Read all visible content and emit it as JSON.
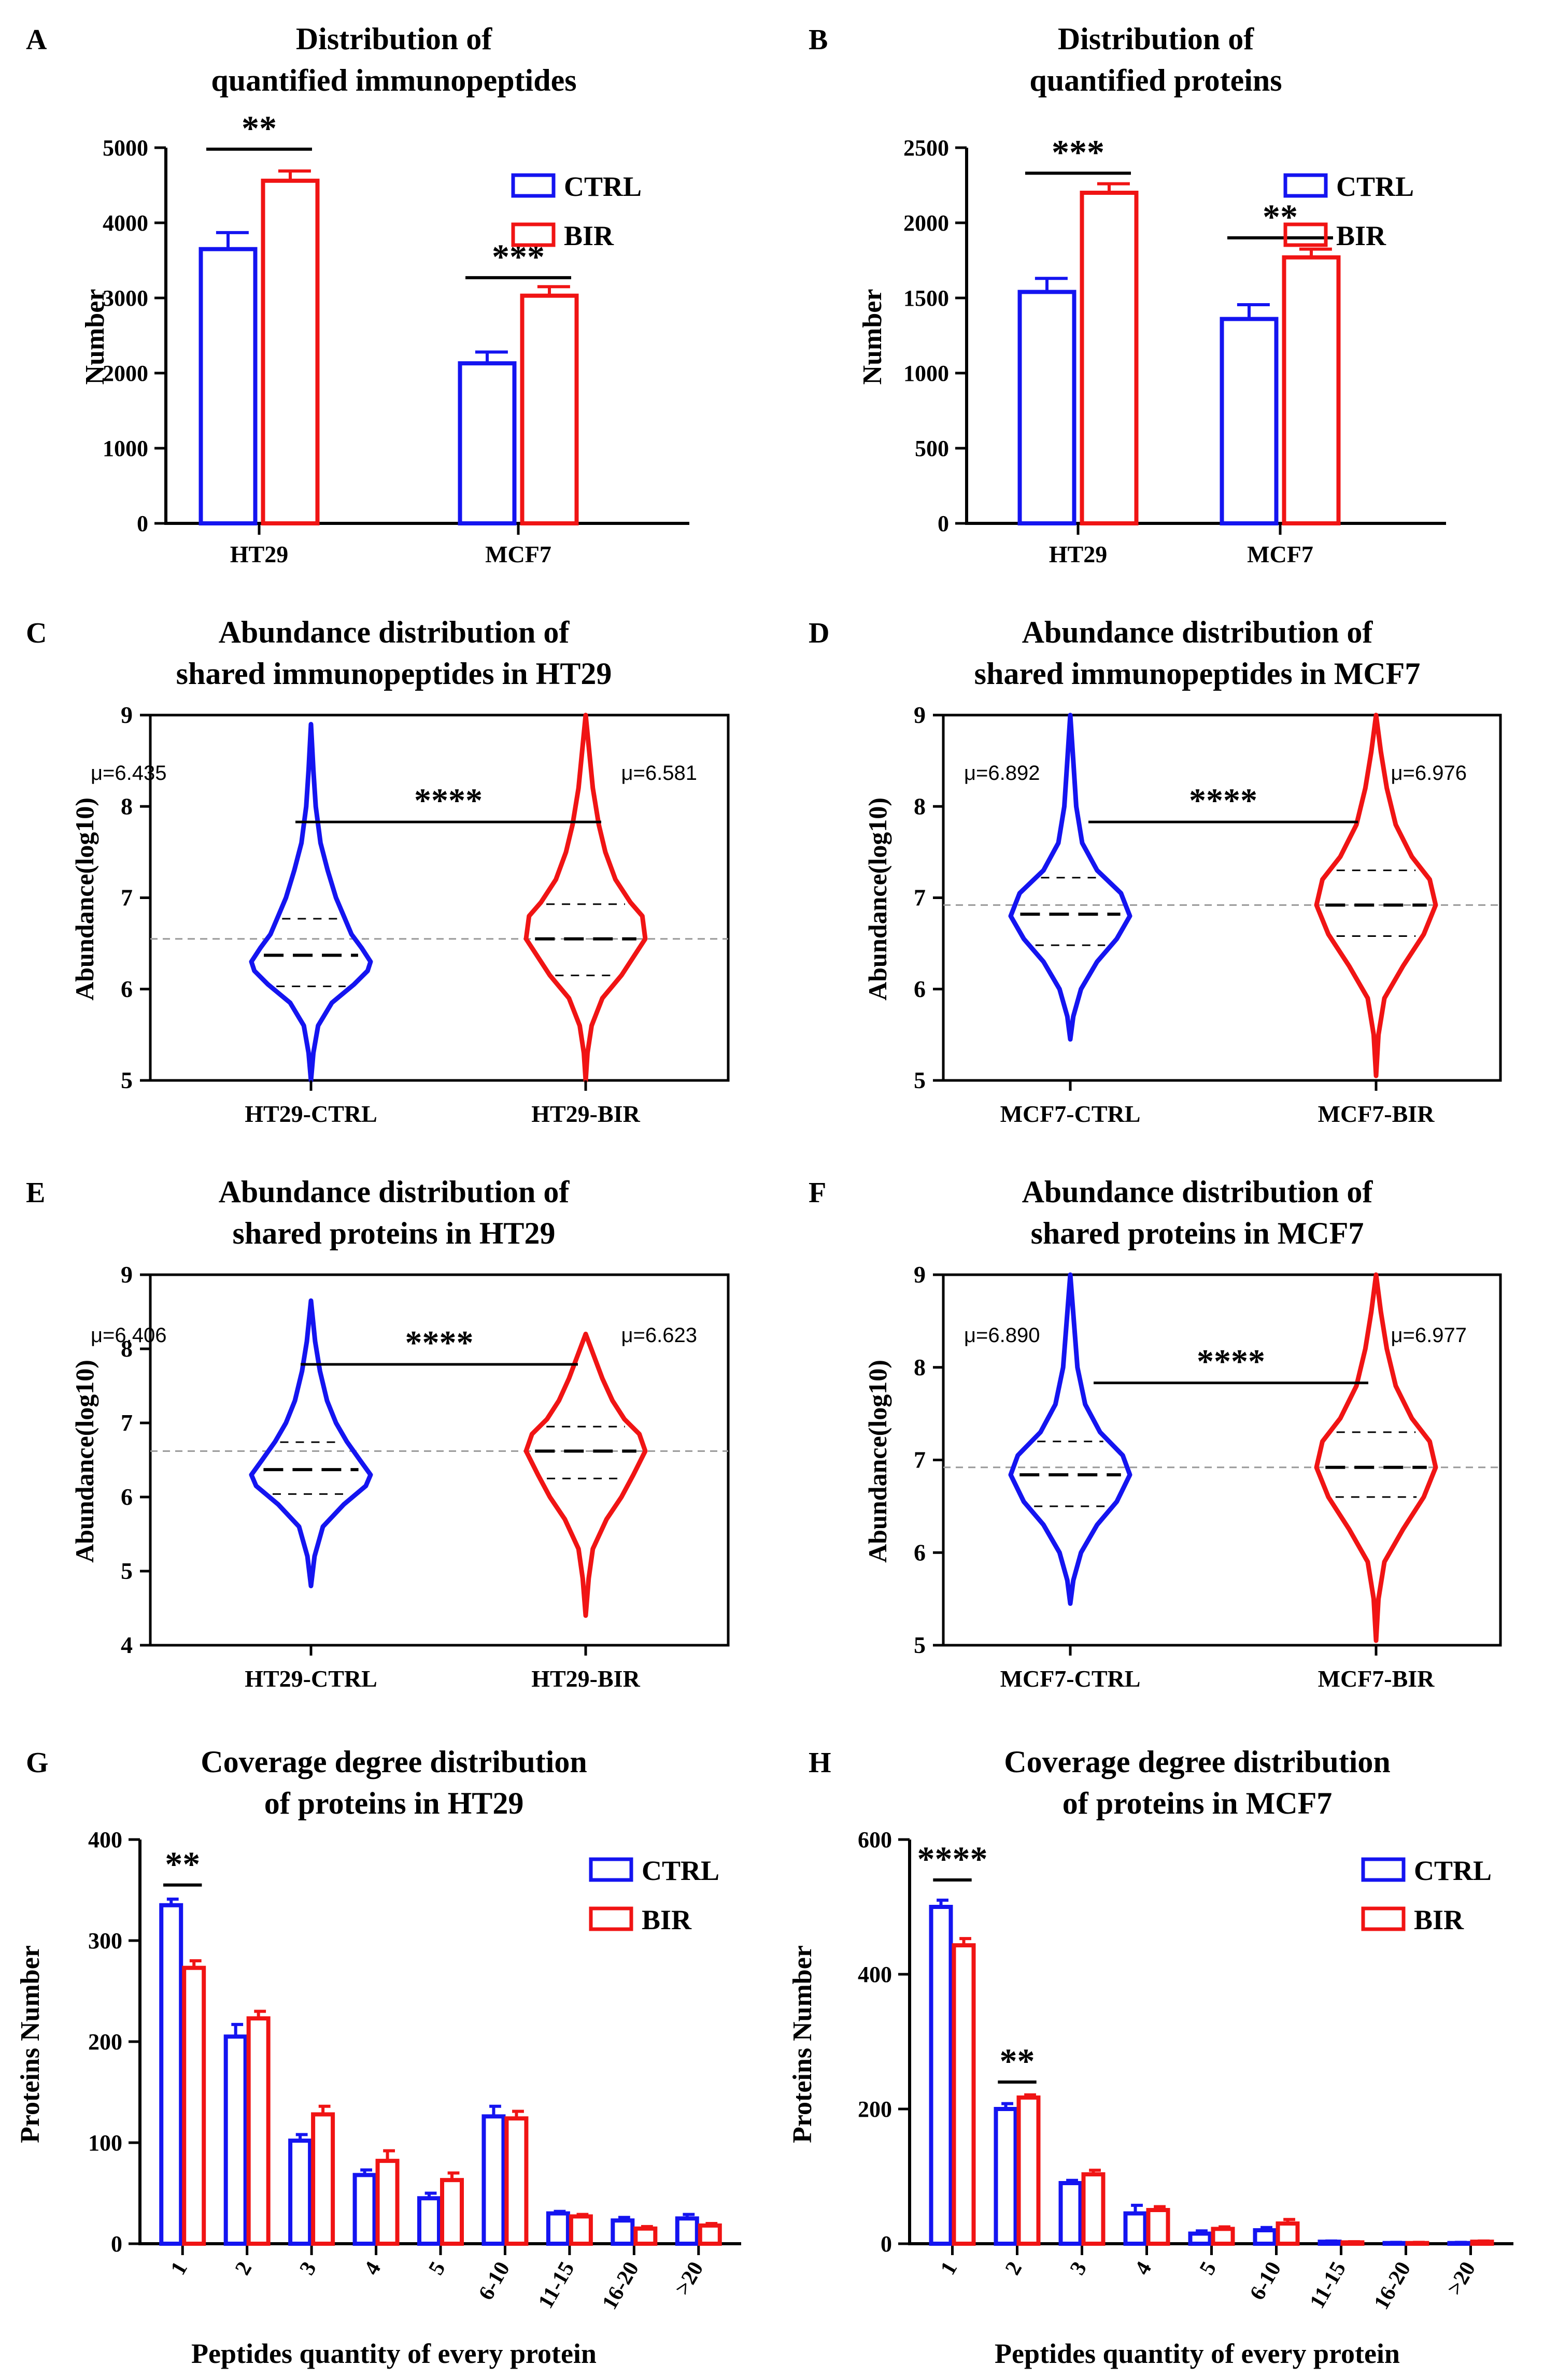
{
  "colors": {
    "ctrl": "#1414f0",
    "bir": "#f01414",
    "axis": "#000000",
    "median": "#000000",
    "ref": "#999999"
  },
  "chart_data": [
    {
      "id": "A",
      "type": "bar",
      "panel_label": "A",
      "title": [
        "Distribution of",
        "quantified immunopeptides"
      ],
      "xlabel": "",
      "ylabel": "Number",
      "ylim": [
        0,
        5000
      ],
      "yticks": [
        0,
        1000,
        2000,
        3000,
        4000,
        5000
      ],
      "categories": [
        "HT29",
        "MCF7"
      ],
      "series": [
        {
          "name": "CTRL",
          "color": "ctrl",
          "values": [
            3650,
            2130
          ],
          "errors": [
            220,
            150
          ]
        },
        {
          "name": "BIR",
          "color": "bir",
          "values": [
            4560,
            3030
          ],
          "errors": [
            130,
            120
          ]
        }
      ],
      "significance": [
        {
          "category": 0,
          "label": "**",
          "y": 4980
        },
        {
          "category": 1,
          "label": "***",
          "y": 3270
        }
      ],
      "legend": [
        "CTRL",
        "BIR"
      ]
    },
    {
      "id": "B",
      "type": "bar",
      "panel_label": "B",
      "title": [
        "Distribution of",
        "quantified proteins"
      ],
      "xlabel": "",
      "ylabel": "Number",
      "ylim": [
        0,
        2500
      ],
      "yticks": [
        0,
        500,
        1000,
        1500,
        2000,
        2500
      ],
      "categories": [
        "HT29",
        "MCF7"
      ],
      "series": [
        {
          "name": "CTRL",
          "color": "ctrl",
          "values": [
            1540,
            1360
          ],
          "errors": [
            90,
            95
          ]
        },
        {
          "name": "BIR",
          "color": "bir",
          "values": [
            2200,
            1770
          ],
          "errors": [
            60,
            55
          ]
        }
      ],
      "significance": [
        {
          "category": 0,
          "label": "***",
          "y": 2330
        },
        {
          "category": 1,
          "label": "**",
          "y": 1900
        }
      ],
      "legend": [
        "CTRL",
        "BIR"
      ]
    },
    {
      "id": "C",
      "type": "violin",
      "panel_label": "C",
      "title": [
        "Abundance distribution of",
        "shared immunopeptides in HT29"
      ],
      "ylabel": "Abundance(log10)",
      "ylim": [
        5,
        9
      ],
      "yticks": [
        5,
        6,
        7,
        8,
        9
      ],
      "reference_line": 6.55,
      "groups": [
        {
          "name": "HT29-CTRL",
          "color": "ctrl",
          "mu_label": "μ=6.435",
          "median": 6.37,
          "q1": 6.03,
          "q3": 6.77,
          "min": 5.0,
          "max": 8.9,
          "profile": [
            [
              5.0,
              0.0
            ],
            [
              5.3,
              0.04
            ],
            [
              5.6,
              0.12
            ],
            [
              5.85,
              0.35
            ],
            [
              6.05,
              0.72
            ],
            [
              6.2,
              0.95
            ],
            [
              6.3,
              1.0
            ],
            [
              6.45,
              0.85
            ],
            [
              6.6,
              0.68
            ],
            [
              6.8,
              0.55
            ],
            [
              7.0,
              0.42
            ],
            [
              7.3,
              0.28
            ],
            [
              7.6,
              0.16
            ],
            [
              8.0,
              0.08
            ],
            [
              8.4,
              0.04
            ],
            [
              8.9,
              0.0
            ]
          ]
        },
        {
          "name": "HT29-BIR",
          "color": "bir",
          "mu_label": "μ=6.581",
          "median": 6.55,
          "q1": 6.15,
          "q3": 6.93,
          "min": 5.0,
          "max": 9.0,
          "profile": [
            [
              5.0,
              0.0
            ],
            [
              5.3,
              0.03
            ],
            [
              5.6,
              0.1
            ],
            [
              5.9,
              0.28
            ],
            [
              6.15,
              0.6
            ],
            [
              6.35,
              0.8
            ],
            [
              6.55,
              1.0
            ],
            [
              6.8,
              0.95
            ],
            [
              6.95,
              0.75
            ],
            [
              7.2,
              0.5
            ],
            [
              7.5,
              0.33
            ],
            [
              7.8,
              0.22
            ],
            [
              8.2,
              0.12
            ],
            [
              8.6,
              0.06
            ],
            [
              9.0,
              0.0
            ]
          ]
        }
      ],
      "significance": {
        "label": "****",
        "y": 8.0
      }
    },
    {
      "id": "D",
      "type": "violin",
      "panel_label": "D",
      "title": [
        "Abundance distribution of",
        "shared immunopeptides in MCF7"
      ],
      "ylabel": "Abundance(log10)",
      "ylim": [
        5,
        9
      ],
      "yticks": [
        5,
        6,
        7,
        8,
        9
      ],
      "reference_line": 6.92,
      "groups": [
        {
          "name": "MCF7-CTRL",
          "color": "ctrl",
          "mu_label": "μ=6.892",
          "median": 6.82,
          "q1": 6.48,
          "q3": 7.22,
          "min": 5.45,
          "max": 9.0,
          "profile": [
            [
              5.45,
              0.0
            ],
            [
              5.7,
              0.05
            ],
            [
              6.0,
              0.18
            ],
            [
              6.3,
              0.45
            ],
            [
              6.55,
              0.78
            ],
            [
              6.8,
              1.0
            ],
            [
              7.05,
              0.85
            ],
            [
              7.3,
              0.45
            ],
            [
              7.6,
              0.2
            ],
            [
              8.0,
              0.1
            ],
            [
              8.5,
              0.05
            ],
            [
              9.0,
              0.0
            ]
          ]
        },
        {
          "name": "MCF7-BIR",
          "color": "bir",
          "mu_label": "μ=6.976",
          "median": 6.92,
          "q1": 6.58,
          "q3": 7.3,
          "min": 5.05,
          "max": 9.0,
          "profile": [
            [
              5.05,
              0.0
            ],
            [
              5.5,
              0.04
            ],
            [
              5.9,
              0.14
            ],
            [
              6.25,
              0.45
            ],
            [
              6.6,
              0.8
            ],
            [
              6.92,
              1.0
            ],
            [
              7.2,
              0.9
            ],
            [
              7.45,
              0.6
            ],
            [
              7.8,
              0.33
            ],
            [
              8.2,
              0.18
            ],
            [
              8.6,
              0.08
            ],
            [
              9.0,
              0.0
            ]
          ]
        }
      ],
      "significance": {
        "label": "****",
        "y": 8.0
      }
    },
    {
      "id": "E",
      "type": "violin",
      "panel_label": "E",
      "title": [
        "Abundance distribution of",
        "shared proteins in HT29"
      ],
      "ylabel": "Abundance(log10)",
      "ylim": [
        4,
        9
      ],
      "yticks": [
        4,
        5,
        6,
        7,
        8,
        9
      ],
      "reference_line": 6.62,
      "groups": [
        {
          "name": "HT29-CTRL",
          "color": "ctrl",
          "mu_label": "μ=6.406",
          "median": 6.37,
          "q1": 6.04,
          "q3": 6.74,
          "min": 4.8,
          "max": 8.65,
          "profile": [
            [
              4.8,
              0.0
            ],
            [
              5.2,
              0.06
            ],
            [
              5.6,
              0.2
            ],
            [
              5.9,
              0.55
            ],
            [
              6.15,
              0.92
            ],
            [
              6.3,
              1.0
            ],
            [
              6.5,
              0.82
            ],
            [
              6.75,
              0.6
            ],
            [
              7.0,
              0.42
            ],
            [
              7.3,
              0.27
            ],
            [
              7.7,
              0.15
            ],
            [
              8.1,
              0.07
            ],
            [
              8.65,
              0.0
            ]
          ]
        },
        {
          "name": "HT29-BIR",
          "color": "bir",
          "mu_label": "μ=6.623",
          "median": 6.62,
          "q1": 6.25,
          "q3": 6.95,
          "min": 4.4,
          "max": 8.2,
          "profile": [
            [
              4.4,
              0.0
            ],
            [
              4.9,
              0.05
            ],
            [
              5.3,
              0.12
            ],
            [
              5.7,
              0.35
            ],
            [
              6.0,
              0.6
            ],
            [
              6.3,
              0.8
            ],
            [
              6.62,
              1.0
            ],
            [
              6.85,
              0.9
            ],
            [
              7.05,
              0.65
            ],
            [
              7.3,
              0.45
            ],
            [
              7.6,
              0.28
            ],
            [
              7.9,
              0.14
            ],
            [
              8.2,
              0.0
            ]
          ]
        }
      ],
      "significance": {
        "label": "****",
        "y": 8.0
      }
    },
    {
      "id": "F",
      "type": "violin",
      "panel_label": "F",
      "title": [
        "Abundance distribution of",
        "shared proteins in MCF7"
      ],
      "ylabel": "Abundance(log10)",
      "ylim": [
        5,
        9
      ],
      "yticks": [
        5,
        6,
        7,
        8,
        9
      ],
      "reference_line": 6.92,
      "groups": [
        {
          "name": "MCF7-CTRL",
          "color": "ctrl",
          "mu_label": "μ=6.890",
          "median": 6.84,
          "q1": 6.5,
          "q3": 7.2,
          "min": 5.45,
          "max": 9.0,
          "profile": [
            [
              5.45,
              0.0
            ],
            [
              5.7,
              0.05
            ],
            [
              6.0,
              0.18
            ],
            [
              6.3,
              0.45
            ],
            [
              6.55,
              0.78
            ],
            [
              6.84,
              1.0
            ],
            [
              7.05,
              0.88
            ],
            [
              7.3,
              0.5
            ],
            [
              7.6,
              0.25
            ],
            [
              8.0,
              0.12
            ],
            [
              8.5,
              0.06
            ],
            [
              9.0,
              0.0
            ]
          ]
        },
        {
          "name": "MCF7-BIR",
          "color": "bir",
          "mu_label": "μ=6.977",
          "median": 6.92,
          "q1": 6.6,
          "q3": 7.3,
          "min": 5.05,
          "max": 9.0,
          "profile": [
            [
              5.05,
              0.0
            ],
            [
              5.5,
              0.04
            ],
            [
              5.9,
              0.14
            ],
            [
              6.25,
              0.45
            ],
            [
              6.6,
              0.8
            ],
            [
              6.92,
              1.0
            ],
            [
              7.2,
              0.9
            ],
            [
              7.45,
              0.6
            ],
            [
              7.8,
              0.33
            ],
            [
              8.2,
              0.18
            ],
            [
              8.6,
              0.08
            ],
            [
              9.0,
              0.0
            ]
          ]
        }
      ],
      "significance": {
        "label": "****",
        "y": 8.0
      }
    },
    {
      "id": "G",
      "type": "bar",
      "panel_label": "G",
      "title": [
        "Coverage degree distribution",
        "of proteins in HT29"
      ],
      "xlabel": "Peptides quantity of every protein",
      "ylabel": "Proteins Number",
      "ylim": [
        0,
        400
      ],
      "yticks": [
        0,
        100,
        200,
        300,
        400
      ],
      "rotated_ticks": true,
      "categories": [
        "1",
        "2",
        "3",
        "4",
        "5",
        "6-10",
        "11-15",
        "16-20",
        ">20"
      ],
      "series": [
        {
          "name": "CTRL",
          "color": "ctrl",
          "values": [
            335,
            205,
            102,
            68,
            45,
            126,
            30,
            23,
            25
          ],
          "errors": [
            6,
            12,
            6,
            5,
            5,
            10,
            2,
            3,
            4
          ]
        },
        {
          "name": "BIR",
          "color": "bir",
          "values": [
            273,
            223,
            128,
            82,
            63,
            124,
            27,
            15,
            18
          ],
          "errors": [
            7,
            7,
            8,
            10,
            7,
            7,
            2,
            2,
            2
          ]
        }
      ],
      "significance": [
        {
          "category": 0,
          "label": "**",
          "y": 355
        }
      ],
      "legend": [
        "CTRL",
        "BIR"
      ]
    },
    {
      "id": "H",
      "type": "bar",
      "panel_label": "H",
      "title": [
        "Coverage degree distribution",
        "of proteins in MCF7"
      ],
      "xlabel": "Peptides quantity of every protein",
      "ylabel": "Proteins Number",
      "ylim": [
        0,
        600
      ],
      "yticks": [
        0,
        200,
        400,
        600
      ],
      "rotated_ticks": true,
      "categories": [
        "1",
        "2",
        "3",
        "4",
        "5",
        "6-10",
        "11-15",
        "16-20",
        ">20"
      ],
      "series": [
        {
          "name": "CTRL",
          "color": "ctrl",
          "values": [
            500,
            200,
            90,
            45,
            15,
            20,
            3,
            1,
            1
          ],
          "errors": [
            10,
            8,
            4,
            12,
            4,
            4,
            1,
            1,
            1
          ]
        },
        {
          "name": "BIR",
          "color": "bir",
          "values": [
            443,
            217,
            103,
            50,
            22,
            30,
            2,
            1,
            3
          ],
          "errors": [
            10,
            4,
            6,
            5,
            3,
            6,
            1,
            1,
            1
          ]
        }
      ],
      "significance": [
        {
          "category": 0,
          "label": "****",
          "y": 540
        },
        {
          "category": 1,
          "label": "**",
          "y": 240
        }
      ],
      "legend": [
        "CTRL",
        "BIR"
      ]
    }
  ]
}
